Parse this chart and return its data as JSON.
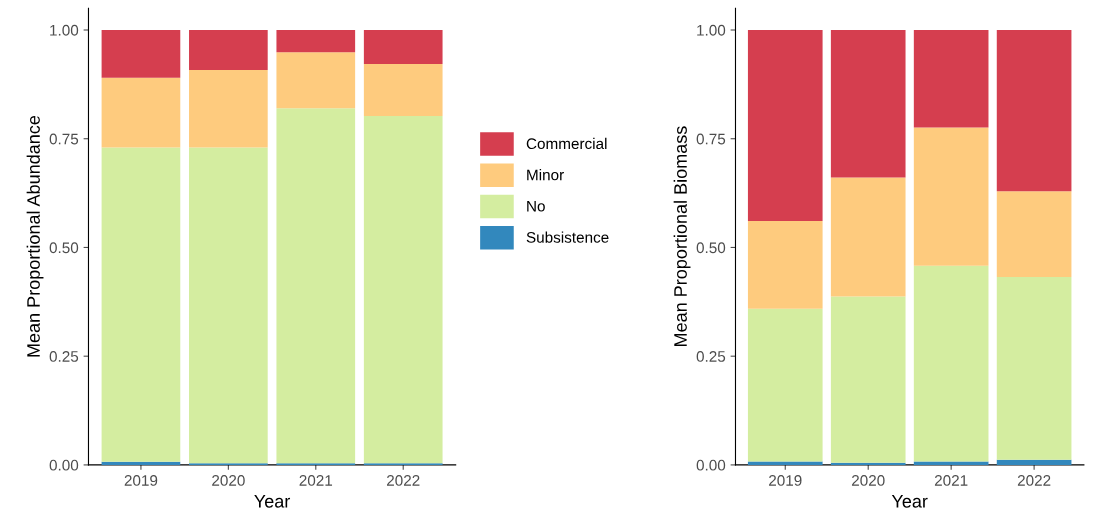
{
  "chart_data": [
    {
      "type": "bar",
      "stacked": true,
      "categories": [
        "2019",
        "2020",
        "2021",
        "2022"
      ],
      "xlabel": "Year",
      "ylabel": "Mean Proportional Abundance",
      "ylim": [
        0,
        1.05
      ],
      "yticks": [
        {
          "value": 0,
          "label": "0.00"
        },
        {
          "value": 0.25,
          "label": "0.25"
        },
        {
          "value": 0.5,
          "label": "0.50"
        },
        {
          "value": 0.75,
          "label": "0.75"
        },
        {
          "value": 1,
          "label": "1.00"
        }
      ],
      "grid": false,
      "legend": "right",
      "series": [
        {
          "name": "Subsistence",
          "color": "#3288bd",
          "values": [
            0.007,
            0.004,
            0.004,
            0.004
          ]
        },
        {
          "name": "No",
          "color": "#d4eda0",
          "values": [
            0.723,
            0.726,
            0.816,
            0.798
          ]
        },
        {
          "name": "Minor",
          "color": "#fecb7e",
          "values": [
            0.16,
            0.178,
            0.129,
            0.12
          ]
        },
        {
          "name": "Commercial",
          "color": "#d53e4f",
          "values": [
            0.11,
            0.092,
            0.051,
            0.078
          ]
        }
      ]
    },
    {
      "type": "bar",
      "stacked": true,
      "categories": [
        "2019",
        "2020",
        "2021",
        "2022"
      ],
      "xlabel": "Year",
      "ylabel": "Mean Proportional Biomass",
      "ylim": [
        0,
        1.05
      ],
      "yticks": [
        {
          "value": 0,
          "label": "0.00"
        },
        {
          "value": 0.25,
          "label": "0.25"
        },
        {
          "value": 0.5,
          "label": "0.50"
        },
        {
          "value": 0.75,
          "label": "0.75"
        },
        {
          "value": 1,
          "label": "1.00"
        }
      ],
      "grid": false,
      "series": [
        {
          "color": "#3288bd",
          "values": [
            0.008,
            0.005,
            0.008,
            0.012
          ]
        },
        {
          "color": "#d4eda0",
          "values": [
            0.351,
            0.382,
            0.45,
            0.42
          ]
        },
        {
          "color": "#fecb7e",
          "values": [
            0.202,
            0.274,
            0.318,
            0.197
          ]
        },
        {
          "color": "#d53e4f",
          "values": [
            0.439,
            0.339,
            0.224,
            0.371
          ]
        }
      ]
    }
  ]
}
